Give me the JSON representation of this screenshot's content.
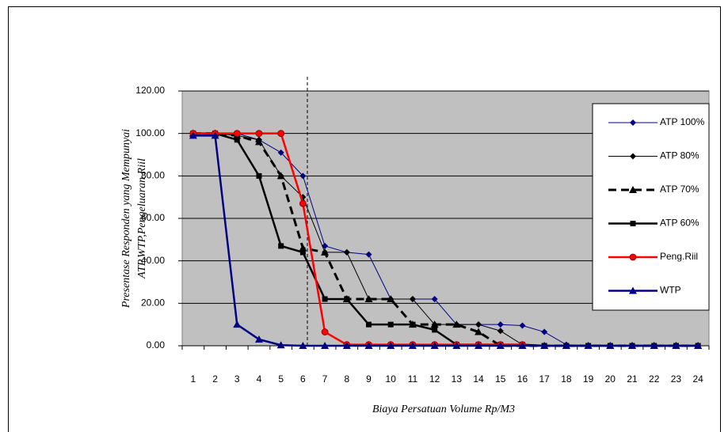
{
  "chart_data": {
    "type": "line",
    "y_label": [
      "Presentase Responden yang Mempunyai",
      "ATP,WTP,Pengeluaran Riil"
    ],
    "x_label": "Biaya Persatuan Volume Rp/M3",
    "categories": [
      "1",
      "2",
      "3",
      "4",
      "5",
      "6",
      "7",
      "8",
      "9",
      "10",
      "11",
      "12",
      "13",
      "14",
      "15",
      "16",
      "17",
      "18",
      "19",
      "20",
      "21",
      "22",
      "23",
      "24"
    ],
    "ylim": [
      0,
      120
    ],
    "yticks": [
      {
        "value": 0,
        "label": "0.00"
      },
      {
        "value": 20,
        "label": "20.00"
      },
      {
        "value": 40,
        "label": "40.00"
      },
      {
        "value": 60,
        "label": "60.00"
      },
      {
        "value": 80,
        "label": "80.00"
      },
      {
        "value": 100,
        "label": "100.00"
      },
      {
        "value": 120,
        "label": "120.00"
      }
    ],
    "grid": true,
    "series": [
      {
        "name": "ATP 100%",
        "color": "#000080",
        "marker": "diamond",
        "width": 1,
        "dashed": false,
        "values": [
          100,
          100,
          100,
          97,
          91,
          80,
          47,
          44,
          43,
          22,
          22,
          22,
          10,
          10,
          10,
          9.5,
          6.5,
          0.5,
          0,
          0,
          0,
          0,
          0,
          0
        ]
      },
      {
        "name": "ATP 80%",
        "color": "#000000",
        "marker": "diamond",
        "width": 1,
        "dashed": false,
        "values": [
          100,
          100,
          99,
          97,
          80,
          70,
          44,
          44,
          22,
          22,
          22,
          10,
          10,
          10,
          7,
          0.5,
          0,
          0,
          0,
          0,
          0,
          0,
          0,
          0
        ]
      },
      {
        "name": "ATP 70%",
        "color": "#000000",
        "marker": "triangle",
        "width": 3,
        "dashed": true,
        "values": [
          100,
          100,
          99,
          96,
          80,
          46,
          44,
          22,
          22,
          22,
          10,
          10,
          10,
          6.5,
          0,
          0,
          0,
          0,
          0,
          0,
          0,
          0,
          0,
          0
        ]
      },
      {
        "name": "ATP 60%",
        "color": "#000000",
        "marker": "square",
        "width": 2.5,
        "dashed": false,
        "values": [
          100,
          100,
          97,
          80,
          47,
          44,
          22,
          22,
          10,
          10,
          10,
          7.5,
          0.5,
          0.5,
          0.5,
          0.5,
          0,
          0,
          0,
          0,
          0,
          0,
          0,
          0
        ]
      },
      {
        "name": "Peng.Riil",
        "color": "#ff0000",
        "marker": "circle",
        "width": 2.5,
        "dashed": false,
        "values": [
          100,
          100,
          100,
          100,
          100,
          67,
          6.5,
          0.5,
          0.5,
          0.5,
          0.5,
          0.5,
          0.5,
          0.5,
          0.5,
          0.5,
          null,
          null,
          null,
          null,
          null,
          null,
          null,
          null
        ]
      },
      {
        "name": "WTP",
        "color": "#000080",
        "marker": "triangle",
        "width": 2.5,
        "dashed": false,
        "values": [
          99,
          99,
          10,
          3,
          0.3,
          0,
          0,
          0,
          0,
          0,
          0,
          0,
          0,
          0,
          0,
          0,
          0,
          0,
          0,
          0,
          0,
          0,
          0,
          0
        ]
      }
    ]
  }
}
